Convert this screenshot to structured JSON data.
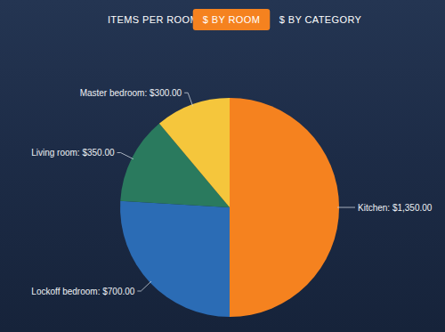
{
  "tabs": [
    {
      "label": "ITEMS PER ROOM",
      "active": false
    },
    {
      "label": "$ BY ROOM",
      "active": true
    },
    {
      "label": "$ BY CATEGORY",
      "active": false
    }
  ],
  "chart_data": {
    "type": "pie",
    "values": [
      1350,
      700,
      350,
      300
    ],
    "value_labels": [
      "Kitchen: $1,350.00",
      "Lockoff bedroom: $700.00",
      "Living room: $350.00",
      "Master bedroom: $300.00"
    ],
    "colors": [
      "#f5821f",
      "#2b6cb5",
      "#2a7a5e",
      "#f5c63c"
    ],
    "data_labels": true
  }
}
